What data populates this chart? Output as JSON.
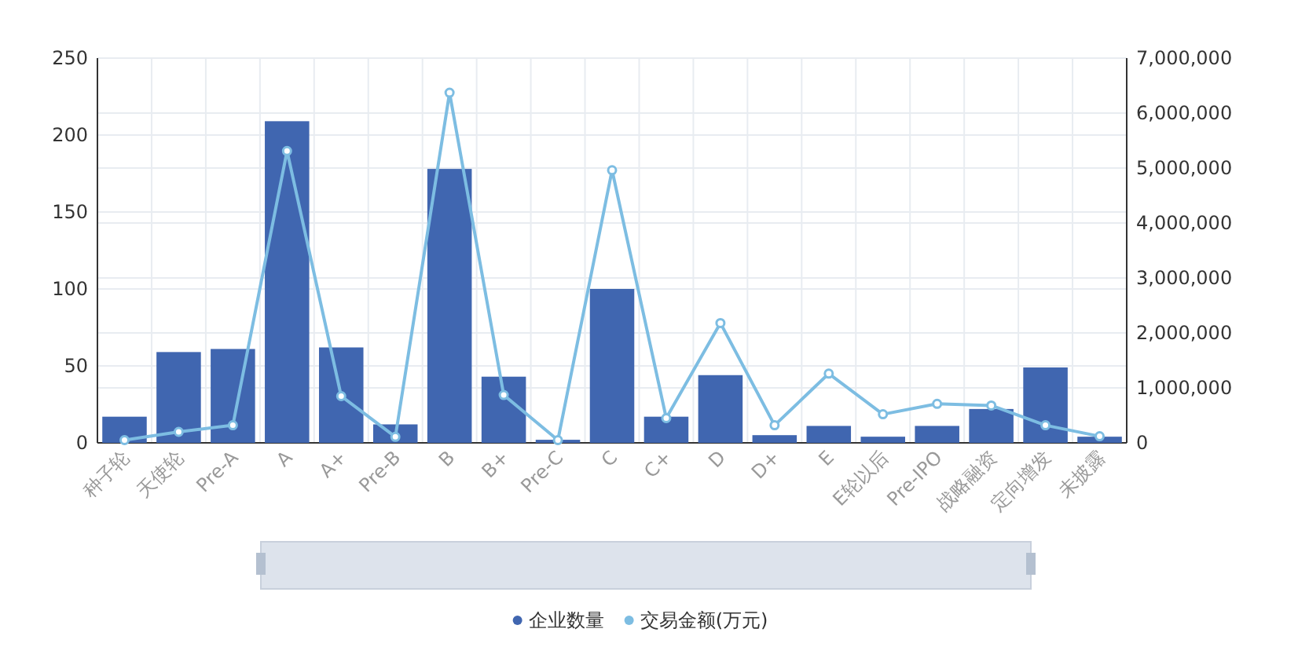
{
  "chart_data": {
    "type": "bar",
    "categories": [
      "种子轮",
      "天使轮",
      "Pre-A",
      "A",
      "A+",
      "Pre-B",
      "B",
      "B+",
      "Pre-C",
      "C",
      "C+",
      "D",
      "D+",
      "E",
      "E轮以后",
      "Pre-IPO",
      "战略融资",
      "定向增发",
      "未披露"
    ],
    "series": [
      {
        "name": "企业数量",
        "color": "#4066b0",
        "values": [
          17,
          59,
          61,
          209,
          62,
          12,
          178,
          43,
          2,
          100,
          17,
          44,
          5,
          11,
          4,
          11,
          22,
          49,
          4
        ]
      },
      {
        "name": "交易金额(万元)",
        "type": "line",
        "axis": "y2",
        "color": "#7dbde2",
        "values": [
          50000,
          200000,
          320000,
          5310000,
          850000,
          110000,
          6370000,
          870000,
          50000,
          4960000,
          450000,
          2180000,
          320000,
          1260000,
          520000,
          710000,
          680000,
          320000,
          120000
        ]
      }
    ],
    "ylim": [
      0,
      250
    ],
    "yticks": [
      0,
      50,
      100,
      150,
      200,
      250
    ],
    "y2lim": [
      0,
      7000000
    ],
    "y2ticks": [
      0,
      {
        "value": 1000000,
        "label": "1,000,000"
      },
      {
        "value": 2000000,
        "label": "2,000,000"
      },
      {
        "value": 3000000,
        "label": "3,000,000"
      },
      {
        "value": 4000000,
        "label": "4,000,000"
      },
      {
        "value": 5000000,
        "label": "5,000,000"
      },
      {
        "value": 6000000,
        "label": "6,000,000"
      },
      {
        "value": 7000000,
        "label": "7,000,000"
      }
    ],
    "grid": true,
    "legend": "bottom",
    "marker": "circle",
    "line_style": "solid"
  }
}
